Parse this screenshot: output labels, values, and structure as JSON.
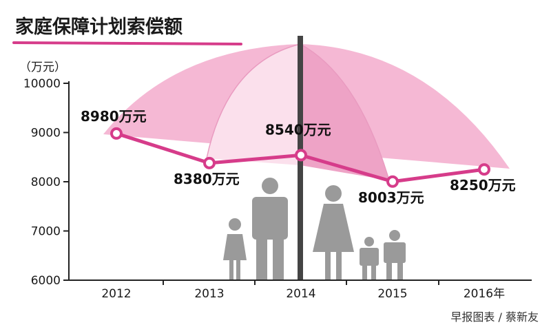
{
  "chart_data": {
    "type": "line",
    "title": "家庭保障计划索偿额",
    "ylabel": "（万元）",
    "categories": [
      "2012",
      "2013",
      "2014",
      "2015",
      "2016年"
    ],
    "series": [
      {
        "values": [
          8980,
          8380,
          8540,
          8003,
          8250
        ]
      }
    ],
    "data_labels": [
      "8980万元",
      "8380万元",
      "8540万元",
      "8003万元",
      "8250万元"
    ],
    "yticks": [
      6000,
      7000,
      8000,
      9000,
      10000
    ],
    "ytick_labels": [
      "6000",
      "7000",
      "8000",
      "9000",
      "10000"
    ],
    "ylim": [
      6000,
      10000
    ],
    "grid": false,
    "legend": "none"
  },
  "source": "早报图表 / 蔡新友",
  "colors": {
    "line": "#d63c8a",
    "title_underline": "#d63c8a",
    "umbrella_pink": "#f5b8d4",
    "umbrella_light": "#fbe0ec",
    "umbrella_mid": "#eea3c6",
    "figures": "#9a9a9a",
    "pole": "#444444"
  },
  "icons": [
    "umbrella-icon",
    "family-figures-icon"
  ]
}
